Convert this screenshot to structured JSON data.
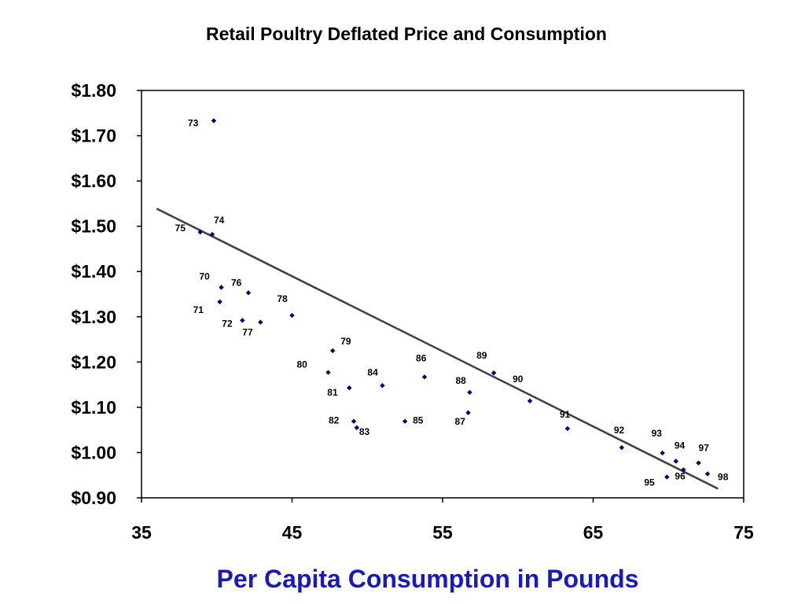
{
  "chart_data": {
    "type": "scatter",
    "title": "Retail Poultry Deflated Price and Consumption",
    "xlabel": "Per Capita Consumption in Pounds",
    "ylabel": "",
    "xlim": [
      35,
      75
    ],
    "ylim": [
      0.9,
      1.8
    ],
    "x_ticks": [
      "35",
      "45",
      "55",
      "65",
      "75"
    ],
    "y_ticks": [
      "$1.80",
      "$1.70",
      "$1.60",
      "$1.50",
      "$1.40",
      "$1.30",
      "$1.20",
      "$1.10",
      "$1.00",
      "$0.90"
    ],
    "grid": false,
    "legend": "none",
    "colors": {
      "points": "#000080",
      "trendline": "#404040",
      "xlabel": "#1a1ab8"
    },
    "points": [
      {
        "label": "70",
        "x": 40.3,
        "y": 1.365
      },
      {
        "label": "71",
        "x": 40.2,
        "y": 1.333
      },
      {
        "label": "72",
        "x": 41.7,
        "y": 1.292
      },
      {
        "label": "73",
        "x": 39.8,
        "y": 1.733
      },
      {
        "label": "74",
        "x": 39.7,
        "y": 1.482
      },
      {
        "label": "75",
        "x": 38.9,
        "y": 1.487
      },
      {
        "label": "76",
        "x": 42.1,
        "y": 1.353
      },
      {
        "label": "77",
        "x": 42.9,
        "y": 1.288
      },
      {
        "label": "78",
        "x": 45.0,
        "y": 1.303
      },
      {
        "label": "79",
        "x": 47.7,
        "y": 1.225
      },
      {
        "label": "80",
        "x": 47.4,
        "y": 1.177
      },
      {
        "label": "81",
        "x": 48.8,
        "y": 1.143
      },
      {
        "label": "82",
        "x": 49.1,
        "y": 1.069
      },
      {
        "label": "83",
        "x": 49.3,
        "y": 1.055
      },
      {
        "label": "84",
        "x": 51.0,
        "y": 1.148
      },
      {
        "label": "85",
        "x": 52.5,
        "y": 1.069
      },
      {
        "label": "86",
        "x": 53.8,
        "y": 1.167
      },
      {
        "label": "87",
        "x": 56.7,
        "y": 1.088
      },
      {
        "label": "88",
        "x": 56.8,
        "y": 1.133
      },
      {
        "label": "89",
        "x": 58.4,
        "y": 1.176
      },
      {
        "label": "90",
        "x": 60.8,
        "y": 1.114
      },
      {
        "label": "91",
        "x": 63.3,
        "y": 1.053
      },
      {
        "label": "92",
        "x": 66.9,
        "y": 1.011
      },
      {
        "label": "93",
        "x": 69.6,
        "y": 0.999
      },
      {
        "label": "94",
        "x": 70.5,
        "y": 0.981
      },
      {
        "label": "95",
        "x": 69.9,
        "y": 0.946
      },
      {
        "label": "96",
        "x": 71.0,
        "y": 0.962
      },
      {
        "label": "97",
        "x": 72.0,
        "y": 0.977
      },
      {
        "label": "98",
        "x": 72.6,
        "y": 0.953
      }
    ],
    "trendline": {
      "x": [
        36.0,
        73.3
      ],
      "y": [
        1.539,
        0.92
      ]
    }
  }
}
